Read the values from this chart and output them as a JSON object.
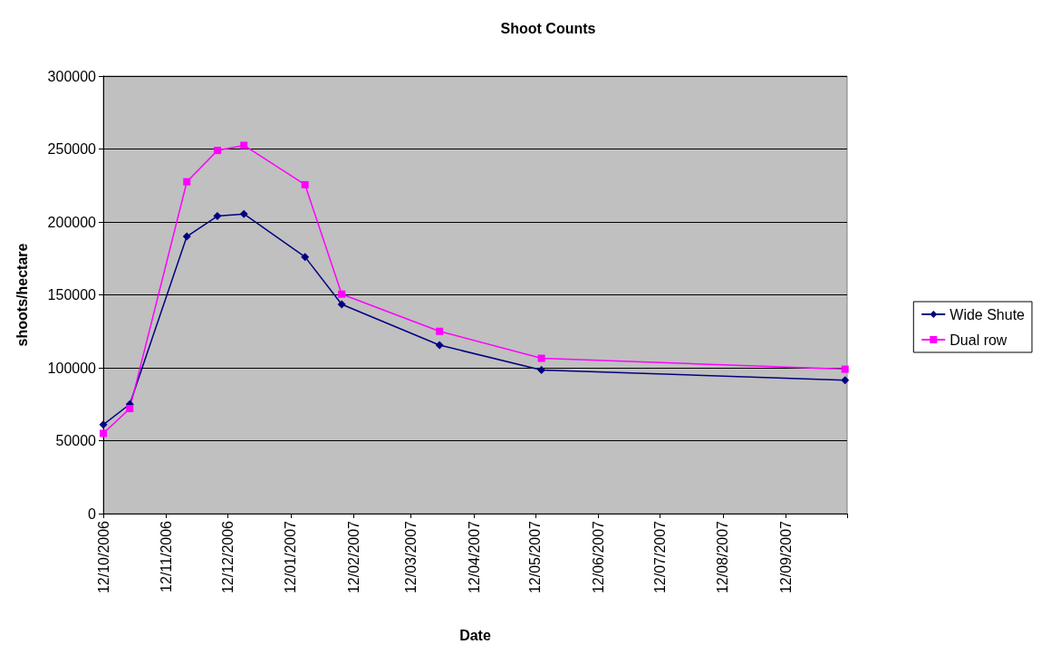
{
  "chart_data": {
    "type": "line",
    "title": "Shoot Counts",
    "xlabel": "Date",
    "ylabel": "shoots/hectare",
    "x": [
      "2006-10-12",
      "2006-10-25",
      "2006-11-22",
      "2006-12-07",
      "2006-12-20",
      "2007-01-19",
      "2007-02-06",
      "2007-03-26",
      "2007-05-15",
      "2007-10-11"
    ],
    "series": [
      {
        "name": "Wide Shute",
        "color": "#000080",
        "marker": "diamond",
        "values": [
          61000,
          75000,
          190000,
          204000,
          205500,
          176000,
          143500,
          115500,
          98500,
          91500
        ]
      },
      {
        "name": "Dual row",
        "color": "#ff00ff",
        "marker": "square",
        "values": [
          55000,
          72000,
          227500,
          249000,
          252500,
          225500,
          150500,
          125000,
          106500,
          99000
        ]
      }
    ],
    "xlim": [
      "2006-10-12",
      "2007-10-12"
    ],
    "xticks": [
      {
        "value": "2006-10-12",
        "label": "12/10/2006"
      },
      {
        "value": "2006-11-12",
        "label": "12/11/2006"
      },
      {
        "value": "2006-12-12",
        "label": "12/12/2006"
      },
      {
        "value": "2007-01-12",
        "label": "12/01/2007"
      },
      {
        "value": "2007-02-12",
        "label": "12/02/2007"
      },
      {
        "value": "2007-03-12",
        "label": "12/03/2007"
      },
      {
        "value": "2007-04-12",
        "label": "12/04/2007"
      },
      {
        "value": "2007-05-12",
        "label": "12/05/2007"
      },
      {
        "value": "2007-06-12",
        "label": "12/06/2007"
      },
      {
        "value": "2007-07-12",
        "label": "12/07/2007"
      },
      {
        "value": "2007-08-12",
        "label": "12/08/2007"
      },
      {
        "value": "2007-09-12",
        "label": "12/09/2007"
      },
      {
        "value": "2007-10-12",
        "label": null
      }
    ],
    "ylim": [
      0,
      300000
    ],
    "yticks": [
      0,
      50000,
      100000,
      150000,
      200000,
      250000,
      300000
    ],
    "grid": "y",
    "legend": "right"
  }
}
